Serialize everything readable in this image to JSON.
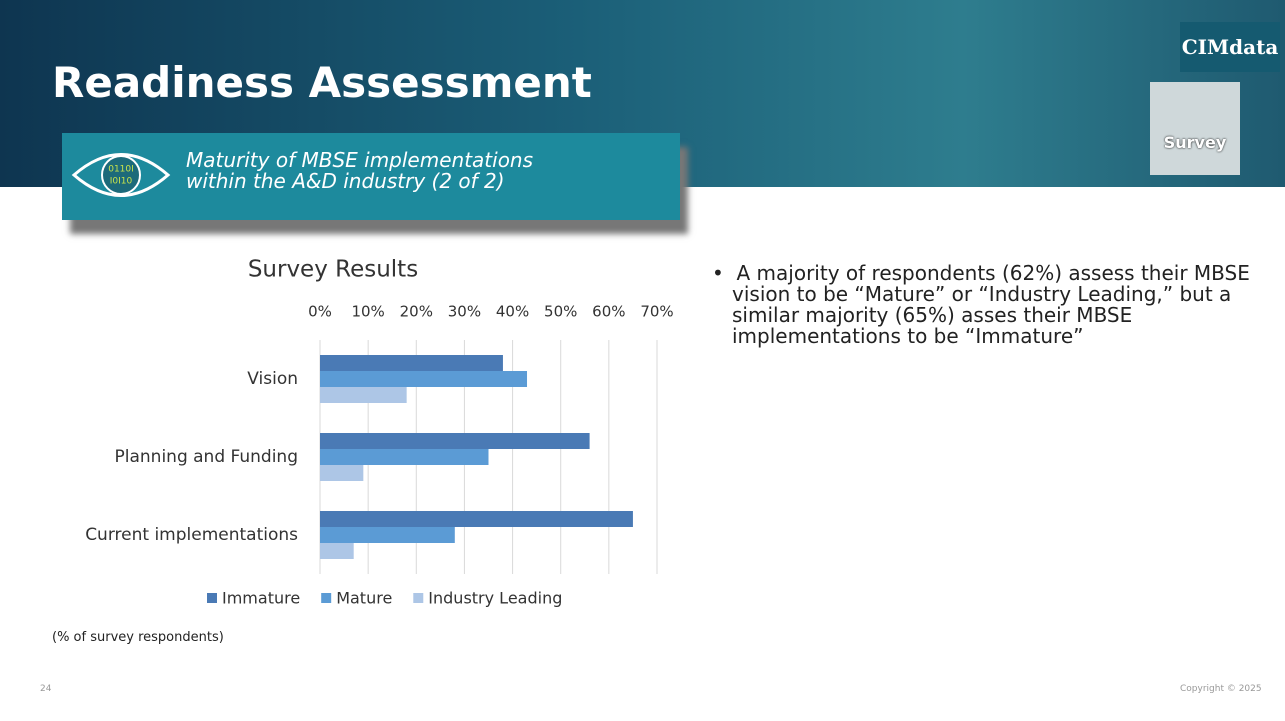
{
  "header": {
    "title": "Readiness Assessment",
    "subtitle": [
      "Maturity of MBSE implementations",
      "within the A&D industry (2 of 2)"
    ],
    "logo": "CIMdata",
    "badge": "Survey"
  },
  "bullet": "A majority of respondents (62%) assess their MBSE vision to be “Mature” or “Industry Leading,” but a similar majority (65%) asses their MBSE implementations to be “Immature”",
  "note": "(% of survey respondents)",
  "footer": {
    "page_number": "24",
    "copyright": "Copyright © 2025"
  },
  "chart_data": {
    "type": "bar",
    "orientation": "horizontal",
    "title": "Survey Results",
    "categories": [
      "Vision",
      "Planning and Funding",
      "Current implementations"
    ],
    "series": [
      {
        "name": "Immature",
        "color": "#4a7ab5",
        "values": [
          38,
          56,
          65
        ]
      },
      {
        "name": "Mature",
        "color": "#5b9bd5",
        "values": [
          43,
          35,
          28
        ]
      },
      {
        "name": "Industry Leading",
        "color": "#adc6e6",
        "values": [
          18,
          9,
          7
        ]
      }
    ],
    "xlim": [
      0,
      70
    ],
    "xticks": [
      {
        "value": 0,
        "label": "0%"
      },
      {
        "value": 10,
        "label": "10%"
      },
      {
        "value": 20,
        "label": "20%"
      },
      {
        "value": 30,
        "label": "30%"
      },
      {
        "value": 40,
        "label": "40%"
      },
      {
        "value": 50,
        "label": "50%"
      },
      {
        "value": 60,
        "label": "60%"
      },
      {
        "value": 70,
        "label": "70%"
      }
    ],
    "grid": true,
    "legend": "bottom"
  }
}
